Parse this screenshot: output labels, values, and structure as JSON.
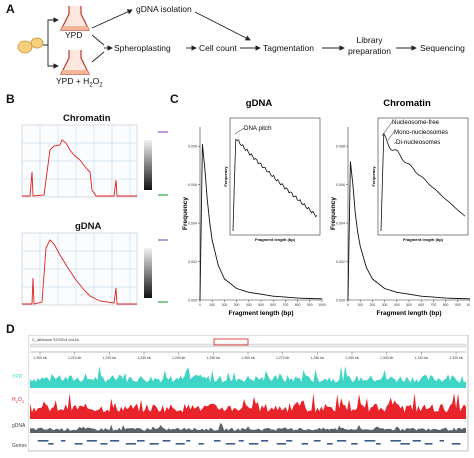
{
  "panels": {
    "a": "A",
    "b": "B",
    "c": "C",
    "d": "D"
  },
  "workflow": {
    "media1": "YPD",
    "media2": "YPD + H",
    "media2_sub": "2",
    "media2_o": "O",
    "media2_sub2": "2",
    "gdna_isolation": "gDNA isolation",
    "spheroplasting": "Spheroplasting",
    "cell_count": "Cell count",
    "tagmentation": "Tagmentation",
    "library_prep_1": "Library",
    "library_prep_2": "preparation",
    "sequencing": "Sequencing",
    "colors": {
      "cells": "#f2c46a",
      "flask_liquid": "#f4b69a",
      "flask": "#c0392b"
    }
  },
  "panel_b": {
    "chromatin_title": "Chromatin",
    "gdna_title": "gDNA",
    "trace_color": "#e0201e"
  },
  "chart_data": [
    {
      "type": "line",
      "title": "gDNA",
      "xlabel": "Fragment length (bp)",
      "ylabel": "Frequency",
      "xticks": [
        "0",
        "100",
        "200",
        "300",
        "400",
        "500",
        "600",
        "700",
        "800",
        "900",
        "1000"
      ],
      "yticks": [
        "0.000",
        "0.002",
        "0.004",
        "0.006",
        "0.008"
      ],
      "inset": {
        "xlabel": "Fragment length (bp)",
        "ylabel": "Frequency"
      },
      "annotations": [
        "DNA pitch"
      ],
      "x": [
        0,
        20,
        40,
        60,
        80,
        100,
        150,
        200,
        300,
        400,
        500,
        600,
        700,
        800,
        900,
        1000
      ],
      "values": [
        0.0,
        0.0081,
        0.0068,
        0.0052,
        0.004,
        0.0031,
        0.0018,
        0.0011,
        0.0006,
        0.0004,
        0.0003,
        0.0002,
        0.00015,
        0.0001,
        8e-05,
        6e-05
      ]
    },
    {
      "type": "line",
      "title": "Chromatin",
      "xlabel": "Fragment length (bp)",
      "ylabel": "Frequency",
      "xticks": [
        "0",
        "100",
        "200",
        "300",
        "400",
        "500",
        "600",
        "700",
        "800",
        "900",
        "1000"
      ],
      "yticks": [
        "0.000",
        "0.002",
        "0.004",
        "0.006",
        "0.008"
      ],
      "inset": {
        "xlabel": "Fragment length (bp)",
        "ylabel": "Frequency"
      },
      "annotations": [
        "Nucleosome-free",
        "Mono-nucleosomes",
        "Di-nucleosomes"
      ],
      "x": [
        0,
        20,
        40,
        60,
        80,
        100,
        150,
        200,
        300,
        400,
        500,
        600,
        700,
        800,
        900,
        1000
      ],
      "values": [
        0.0,
        0.0072,
        0.006,
        0.0045,
        0.0035,
        0.0028,
        0.0017,
        0.0011,
        0.0006,
        0.0004,
        0.0003,
        0.0002,
        0.00015,
        0.0001,
        8e-05,
        6e-05
      ]
    }
  ],
  "panel_d": {
    "locus": "C_albicans SC5314 chr1A",
    "coords": [
      "1,200 kb",
      "1,210 kb",
      "1,220 kb",
      "1,230 kb",
      "1,240 kb",
      "1,250 kb",
      "1,260 kb",
      "1,270 kb",
      "1,280 kb",
      "1,290 kb",
      "1,300 kb",
      "1,310 kb",
      "1,320 kb"
    ],
    "ypd_label": "YPD",
    "h2o2_label": "H",
    "h2o2_sub": "2",
    "h2o2_o": "O",
    "h2o2_sub2": "2",
    "gdna_label": "gDNA",
    "genes_label": "Genes",
    "colors": {
      "ypd": "#3fd5c6",
      "h2o2": "#e8232a",
      "gdna": "#5a6168"
    }
  }
}
